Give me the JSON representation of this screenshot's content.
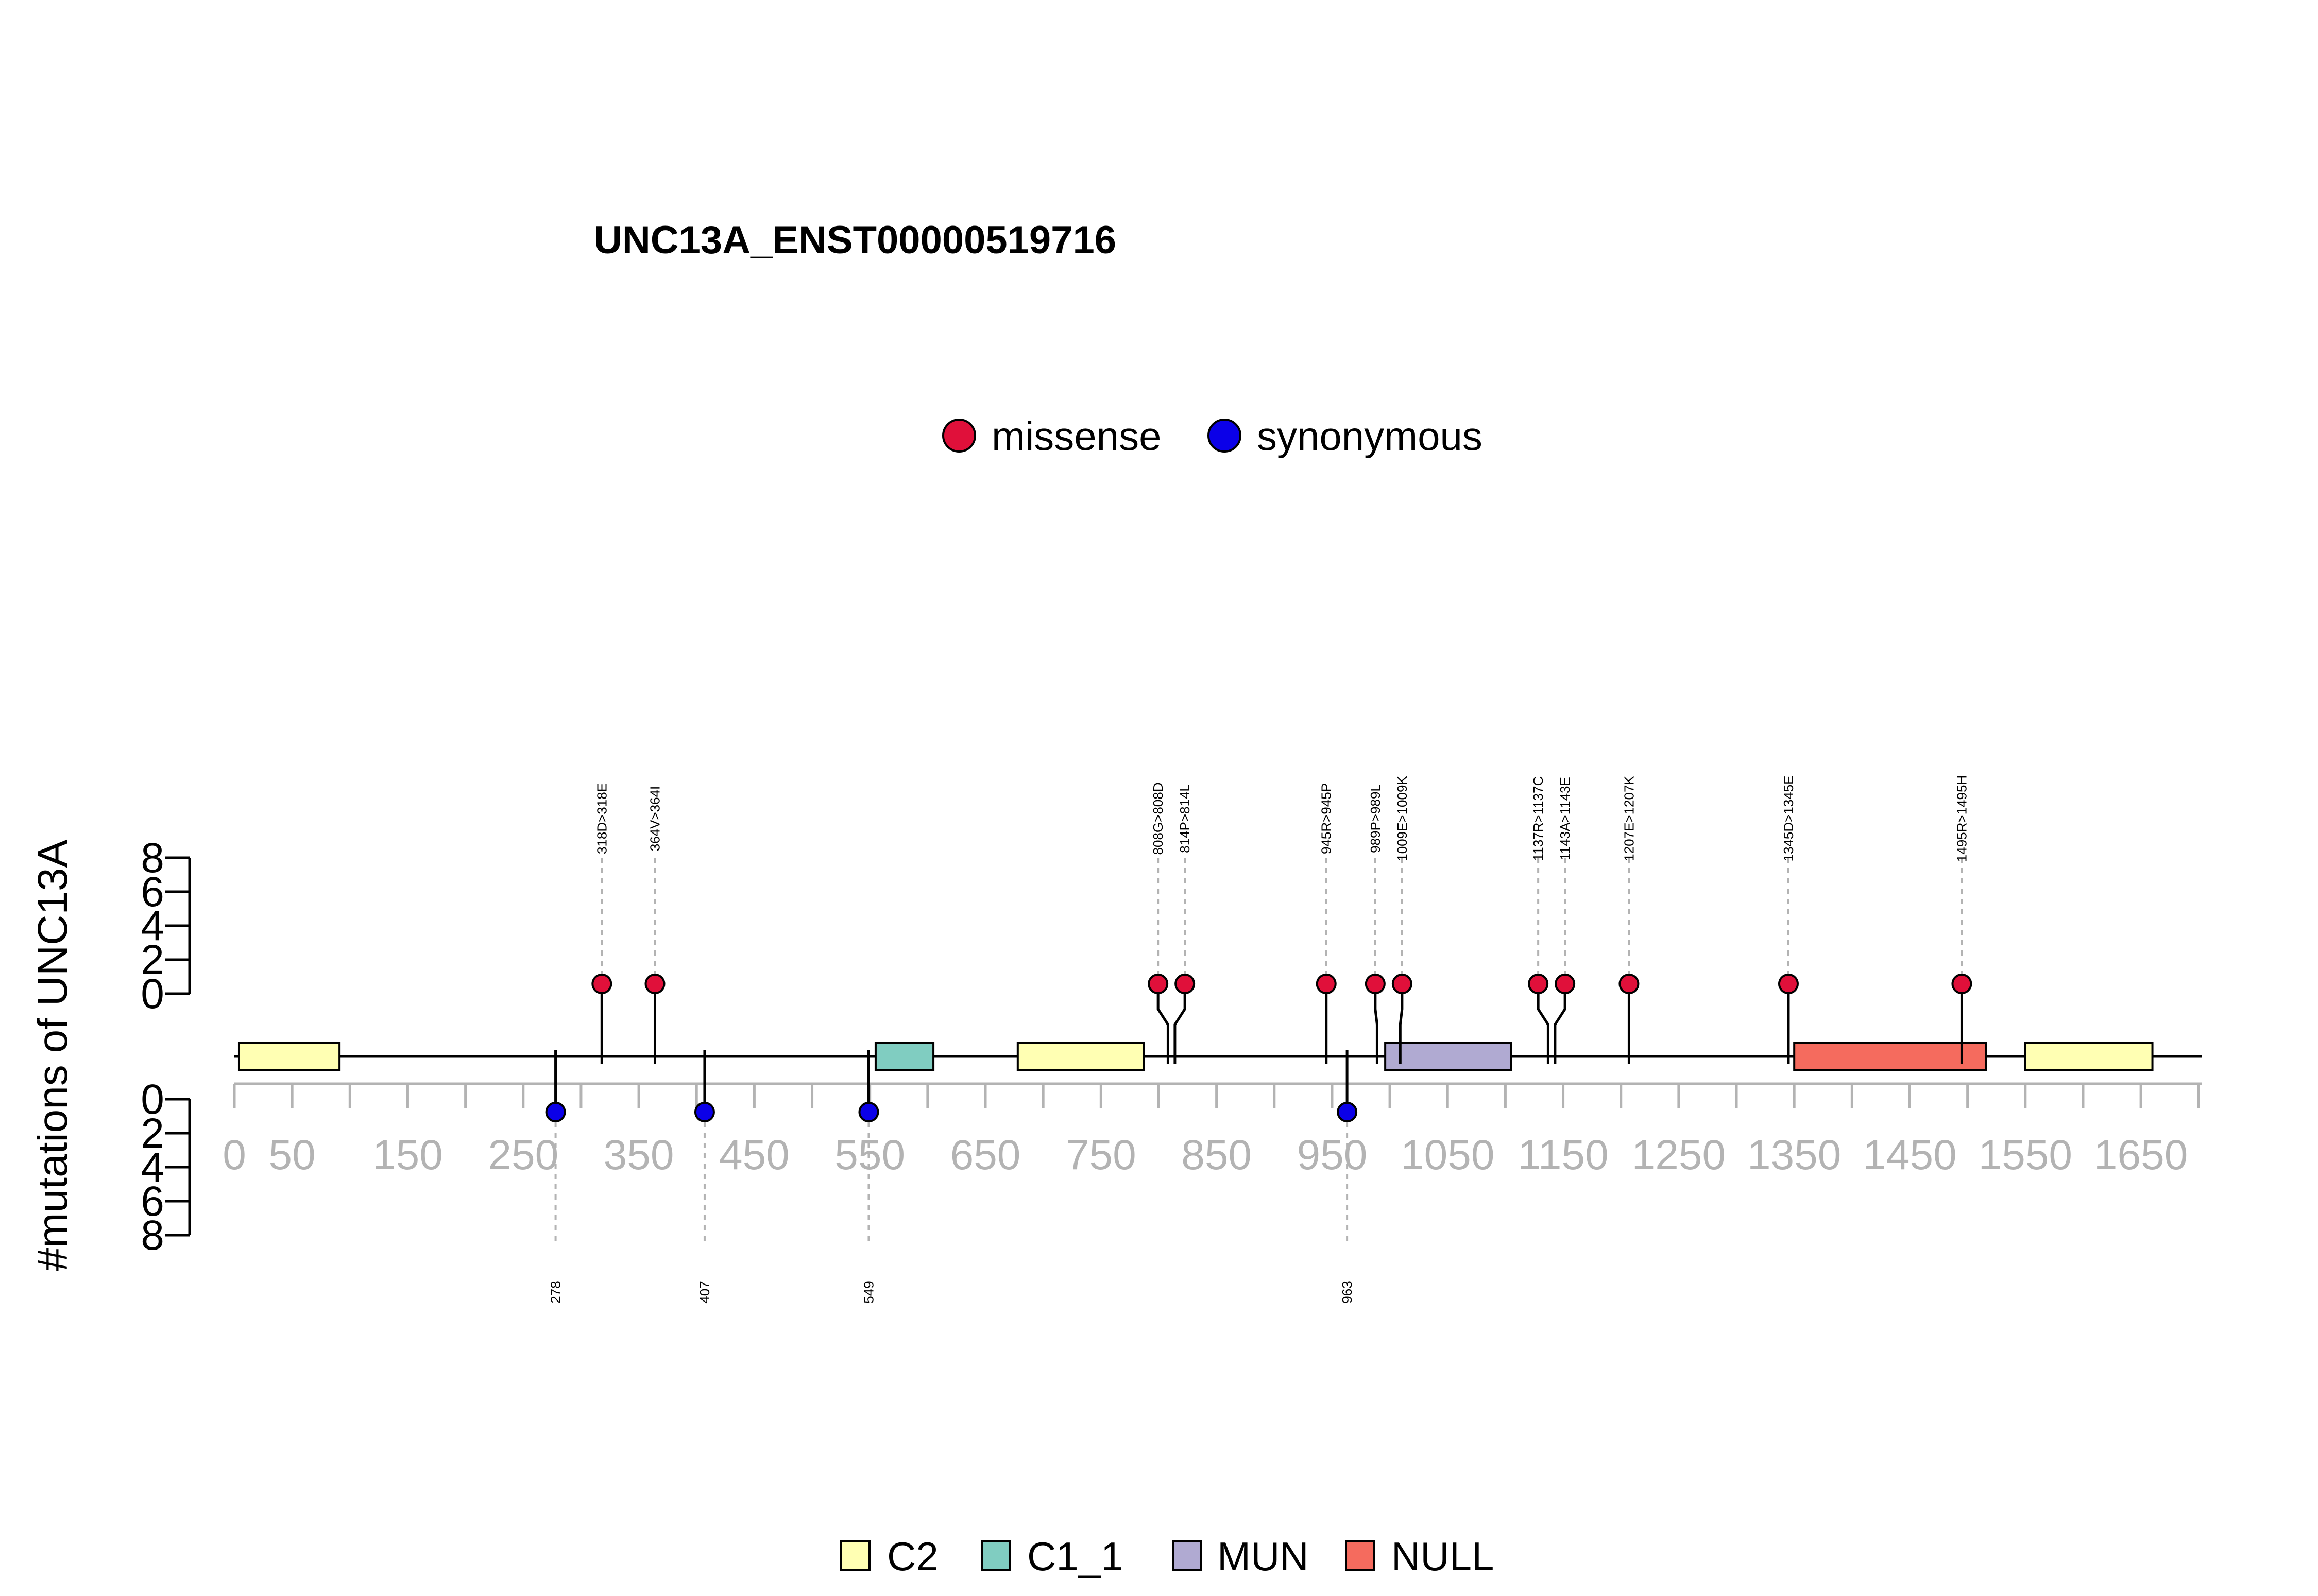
{
  "chart_data": {
    "type": "lollipop",
    "title": "UNC13A_ENST00000519716",
    "ylabel": "#mutations of UNC13A",
    "xlim": [
      0,
      1703
    ],
    "x_ticks": [
      0,
      50,
      150,
      250,
      350,
      450,
      550,
      650,
      750,
      850,
      950,
      1050,
      1150,
      1250,
      1350,
      1450,
      1550,
      1650
    ],
    "y_ticks": [
      "0",
      "2",
      "4",
      "6",
      "8"
    ],
    "mutation_legend": [
      {
        "name": "missense",
        "color": "#e0103a"
      },
      {
        "name": "synonymous",
        "color": "#0b00e8"
      }
    ],
    "domain_legend": [
      {
        "name": "C2",
        "color": "#ffffb3"
      },
      {
        "name": "C1_1",
        "color": "#80cdc1"
      },
      {
        "name": "MUN",
        "color": "#b0aad2"
      },
      {
        "name": "NULL",
        "color": "#f56b5e"
      }
    ],
    "domains": [
      {
        "name": "C2",
        "start": 4,
        "end": 91
      },
      {
        "name": "C1_1",
        "start": 555,
        "end": 605
      },
      {
        "name": "C2",
        "start": 678,
        "end": 787
      },
      {
        "name": "MUN",
        "start": 996,
        "end": 1105
      },
      {
        "name": "NULL",
        "start": 1350,
        "end": 1516
      },
      {
        "name": "C2",
        "start": 1550,
        "end": 1660
      }
    ],
    "missense": [
      {
        "position": 318,
        "label": "318D>318E",
        "count": 1
      },
      {
        "position": 364,
        "label": "364V>364I",
        "count": 1
      },
      {
        "position": 808,
        "label": "808G>808D",
        "count": 1
      },
      {
        "position": 814,
        "label": "814P>814L",
        "count": 1
      },
      {
        "position": 945,
        "label": "945R>945P",
        "count": 1
      },
      {
        "position": 989,
        "label": "989P>989L",
        "count": 1
      },
      {
        "position": 1009,
        "label": "1009E>1009K",
        "count": 1
      },
      {
        "position": 1137,
        "label": "1137R>1137C",
        "count": 1
      },
      {
        "position": 1143,
        "label": "1143A>1143E",
        "count": 1
      },
      {
        "position": 1207,
        "label": "1207E>1207K",
        "count": 1
      },
      {
        "position": 1345,
        "label": "1345D>1345E",
        "count": 1
      },
      {
        "position": 1495,
        "label": "1495R>1495H",
        "count": 1
      }
    ],
    "synonymous": [
      {
        "position": 278,
        "label": "278",
        "count": 1
      },
      {
        "position": 407,
        "label": "407",
        "count": 1
      },
      {
        "position": 549,
        "label": "549",
        "count": 1
      },
      {
        "position": 963,
        "label": "963",
        "count": 1
      }
    ]
  }
}
